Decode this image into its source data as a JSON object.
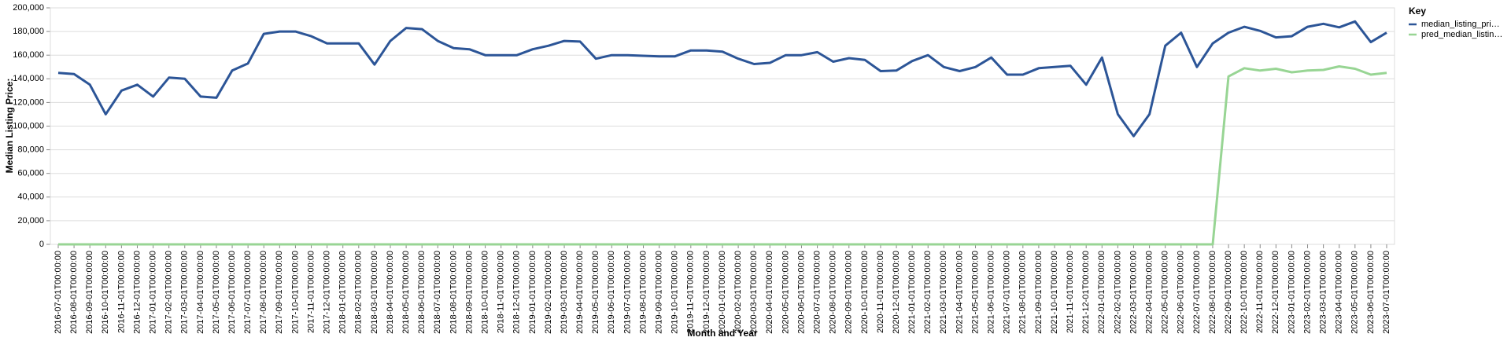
{
  "chart_data": {
    "type": "line",
    "x_label": "Month and Year",
    "y_label": "Median Listing Price:",
    "legend_title": "Key",
    "legend_position": "right",
    "grid": true,
    "categories": [
      "2016-07-01T00:00:00",
      "2016-08-01T00:00:00",
      "2016-09-01T00:00:00",
      "2016-10-01T00:00:00",
      "2016-11-01T00:00:00",
      "2016-12-01T00:00:00",
      "2017-01-01T00:00:00",
      "2017-02-01T00:00:00",
      "2017-03-01T00:00:00",
      "2017-04-01T00:00:00",
      "2017-05-01T00:00:00",
      "2017-06-01T00:00:00",
      "2017-07-01T00:00:00",
      "2017-08-01T00:00:00",
      "2017-09-01T00:00:00",
      "2017-10-01T00:00:00",
      "2017-11-01T00:00:00",
      "2017-12-01T00:00:00",
      "2018-01-01T00:00:00",
      "2018-02-01T00:00:00",
      "2018-03-01T00:00:00",
      "2018-04-01T00:00:00",
      "2018-05-01T00:00:00",
      "2018-06-01T00:00:00",
      "2018-07-01T00:00:00",
      "2018-08-01T00:00:00",
      "2018-09-01T00:00:00",
      "2018-10-01T00:00:00",
      "2018-11-01T00:00:00",
      "2018-12-01T00:00:00",
      "2019-01-01T00:00:00",
      "2019-02-01T00:00:00",
      "2019-03-01T00:00:00",
      "2019-04-01T00:00:00",
      "2019-05-01T00:00:00",
      "2019-06-01T00:00:00",
      "2019-07-01T00:00:00",
      "2019-08-01T00:00:00",
      "2019-09-01T00:00:00",
      "2019-10-01T00:00:00",
      "2019-11-01T00:00:00",
      "2019-12-01T00:00:00",
      "2020-01-01T00:00:00",
      "2020-02-01T00:00:00",
      "2020-03-01T00:00:00",
      "2020-04-01T00:00:00",
      "2020-05-01T00:00:00",
      "2020-06-01T00:00:00",
      "2020-07-01T00:00:00",
      "2020-08-01T00:00:00",
      "2020-09-01T00:00:00",
      "2020-10-01T00:00:00",
      "2020-11-01T00:00:00",
      "2020-12-01T00:00:00",
      "2021-01-01T00:00:00",
      "2021-02-01T00:00:00",
      "2021-03-01T00:00:00",
      "2021-04-01T00:00:00",
      "2021-05-01T00:00:00",
      "2021-06-01T00:00:00",
      "2021-07-01T00:00:00",
      "2021-08-01T00:00:00",
      "2021-09-01T00:00:00",
      "2021-10-01T00:00:00",
      "2021-11-01T00:00:00",
      "2021-12-01T00:00:00",
      "2022-01-01T00:00:00",
      "2022-02-01T00:00:00",
      "2022-03-01T00:00:00",
      "2022-04-01T00:00:00",
      "2022-05-01T00:00:00",
      "2022-06-01T00:00:00",
      "2022-07-01T00:00:00",
      "2022-08-01T00:00:00",
      "2022-09-01T00:00:00",
      "2022-10-01T00:00:00",
      "2022-11-01T00:00:00",
      "2022-12-01T00:00:00",
      "2023-01-01T00:00:00",
      "2023-02-01T00:00:00",
      "2023-03-01T00:00:00",
      "2023-04-01T00:00:00",
      "2023-05-01T00:00:00",
      "2023-06-01T00:00:00",
      "2023-07-01T00:00:00"
    ],
    "series": [
      {
        "name": "median_listing_pri…",
        "color": "#2c5597",
        "values": [
          145000,
          144000,
          135000,
          110000,
          130000,
          135000,
          125000,
          141000,
          140000,
          125000,
          124000,
          147000,
          153000,
          178000,
          180000,
          180000,
          176000,
          170000,
          170000,
          170000,
          152000,
          172000,
          183000,
          182000,
          172000,
          166000,
          165000,
          160000,
          160000,
          160000,
          165000,
          168000,
          172000,
          171500,
          157000,
          160000,
          160000,
          159500,
          159000,
          159000,
          164000,
          164000,
          163000,
          157000,
          152500,
          153500,
          160000,
          160000,
          162500,
          154500,
          157500,
          156000,
          146500,
          147000,
          155000,
          160000,
          150000,
          146500,
          150000,
          158000,
          143500,
          143500,
          149000,
          150000,
          151000,
          135000,
          158000,
          110000,
          91500,
          110000,
          168000,
          179000,
          150000,
          170000,
          179000,
          184000,
          180500,
          175000,
          176000,
          184000,
          186500,
          183500,
          188500,
          171000,
          179000
        ]
      },
      {
        "name": "pred_median_listin…",
        "color": "#98d594",
        "values": [
          0,
          0,
          0,
          0,
          0,
          0,
          0,
          0,
          0,
          0,
          0,
          0,
          0,
          0,
          0,
          0,
          0,
          0,
          0,
          0,
          0,
          0,
          0,
          0,
          0,
          0,
          0,
          0,
          0,
          0,
          0,
          0,
          0,
          0,
          0,
          0,
          0,
          0,
          0,
          0,
          0,
          0,
          0,
          0,
          0,
          0,
          0,
          0,
          0,
          0,
          0,
          0,
          0,
          0,
          0,
          0,
          0,
          0,
          0,
          0,
          0,
          0,
          0,
          0,
          0,
          0,
          0,
          0,
          0,
          0,
          0,
          0,
          0,
          0,
          142000,
          149000,
          147000,
          148500,
          145500,
          147000,
          147500,
          150500,
          148500,
          143500,
          145000
        ]
      }
    ],
    "ylim": [
      0,
      200000
    ],
    "yticks": [
      0,
      {
        "value": 20000,
        "label": "20,000"
      },
      {
        "value": 40000,
        "label": "40,000"
      },
      {
        "value": 60000,
        "label": "60,000"
      },
      {
        "value": 80000,
        "label": "80,000"
      },
      {
        "value": 100000,
        "label": "100,000"
      },
      {
        "value": 120000,
        "label": "120,000"
      },
      {
        "value": 140000,
        "label": "140,000"
      },
      {
        "value": 160000,
        "label": "160,000"
      },
      {
        "value": 180000,
        "label": "180,000"
      },
      {
        "value": 200000,
        "label": "200,000"
      }
    ]
  }
}
